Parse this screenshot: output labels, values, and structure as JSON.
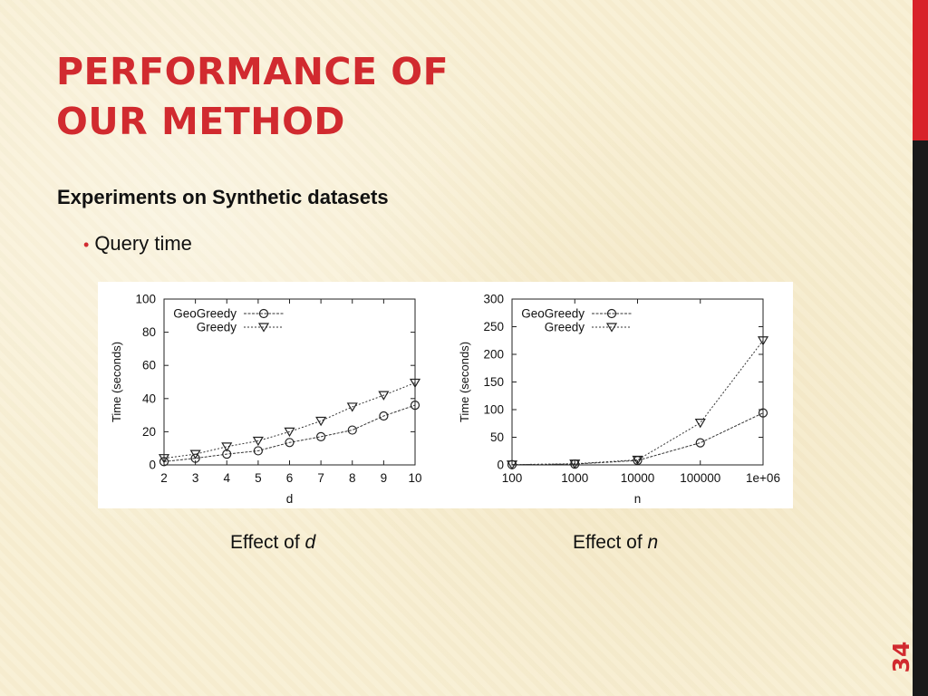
{
  "slide": {
    "title_line1": "PERFORMANCE OF",
    "title_line2": "OUR METHOD",
    "subheading": "Experiments on Synthetic datasets",
    "bullet": "Query time",
    "caption1_prefix": "Effect of ",
    "caption1_var": "d",
    "caption2_prefix": "Effect of ",
    "caption2_var": "n",
    "page_number": "34"
  },
  "colors": {
    "title": "#d12a2f",
    "accent_bar": "#d8232a",
    "dark_bar": "#1a1a1a",
    "background": "#f8efd3"
  },
  "chart_data": [
    {
      "type": "line",
      "xlabel": "d",
      "ylabel": "Time (seconds)",
      "x": [
        2,
        3,
        4,
        5,
        6,
        7,
        8,
        9,
        10
      ],
      "x_tick_labels": [
        "2",
        "3",
        "4",
        "5",
        "6",
        "7",
        "8",
        "9",
        "10"
      ],
      "ylim": [
        0,
        100
      ],
      "y_ticks": [
        0,
        20,
        40,
        60,
        80,
        100
      ],
      "grid": false,
      "legend_position": "top-left",
      "series": [
        {
          "name": "GeoGreedy",
          "marker": "circle",
          "line": "solid",
          "values": [
            2,
            4,
            6.5,
            8.5,
            13.5,
            17,
            21,
            29.5,
            36
          ]
        },
        {
          "name": "Greedy",
          "marker": "triangle-down",
          "line": "dotted",
          "values": [
            4,
            6.5,
            11,
            14.5,
            20,
            26.5,
            35,
            42,
            49.5
          ]
        }
      ]
    },
    {
      "type": "line",
      "xlabel": "n",
      "ylabel": "Time (seconds)",
      "x": [
        100,
        1000,
        10000,
        100000,
        1000000
      ],
      "x_tick_labels": [
        "100",
        "1000",
        "10000",
        "100000",
        "1e+06"
      ],
      "x_scale": "log",
      "ylim": [
        0,
        300
      ],
      "y_ticks": [
        0,
        50,
        100,
        150,
        200,
        250,
        300
      ],
      "grid": false,
      "legend_position": "top-left",
      "series": [
        {
          "name": "GeoGreedy",
          "marker": "circle",
          "line": "solid",
          "values": [
            0.5,
            1.5,
            8,
            40,
            94
          ]
        },
        {
          "name": "Greedy",
          "marker": "triangle-down",
          "line": "dotted",
          "values": [
            0.5,
            2,
            9,
            76,
            225
          ]
        }
      ]
    }
  ]
}
